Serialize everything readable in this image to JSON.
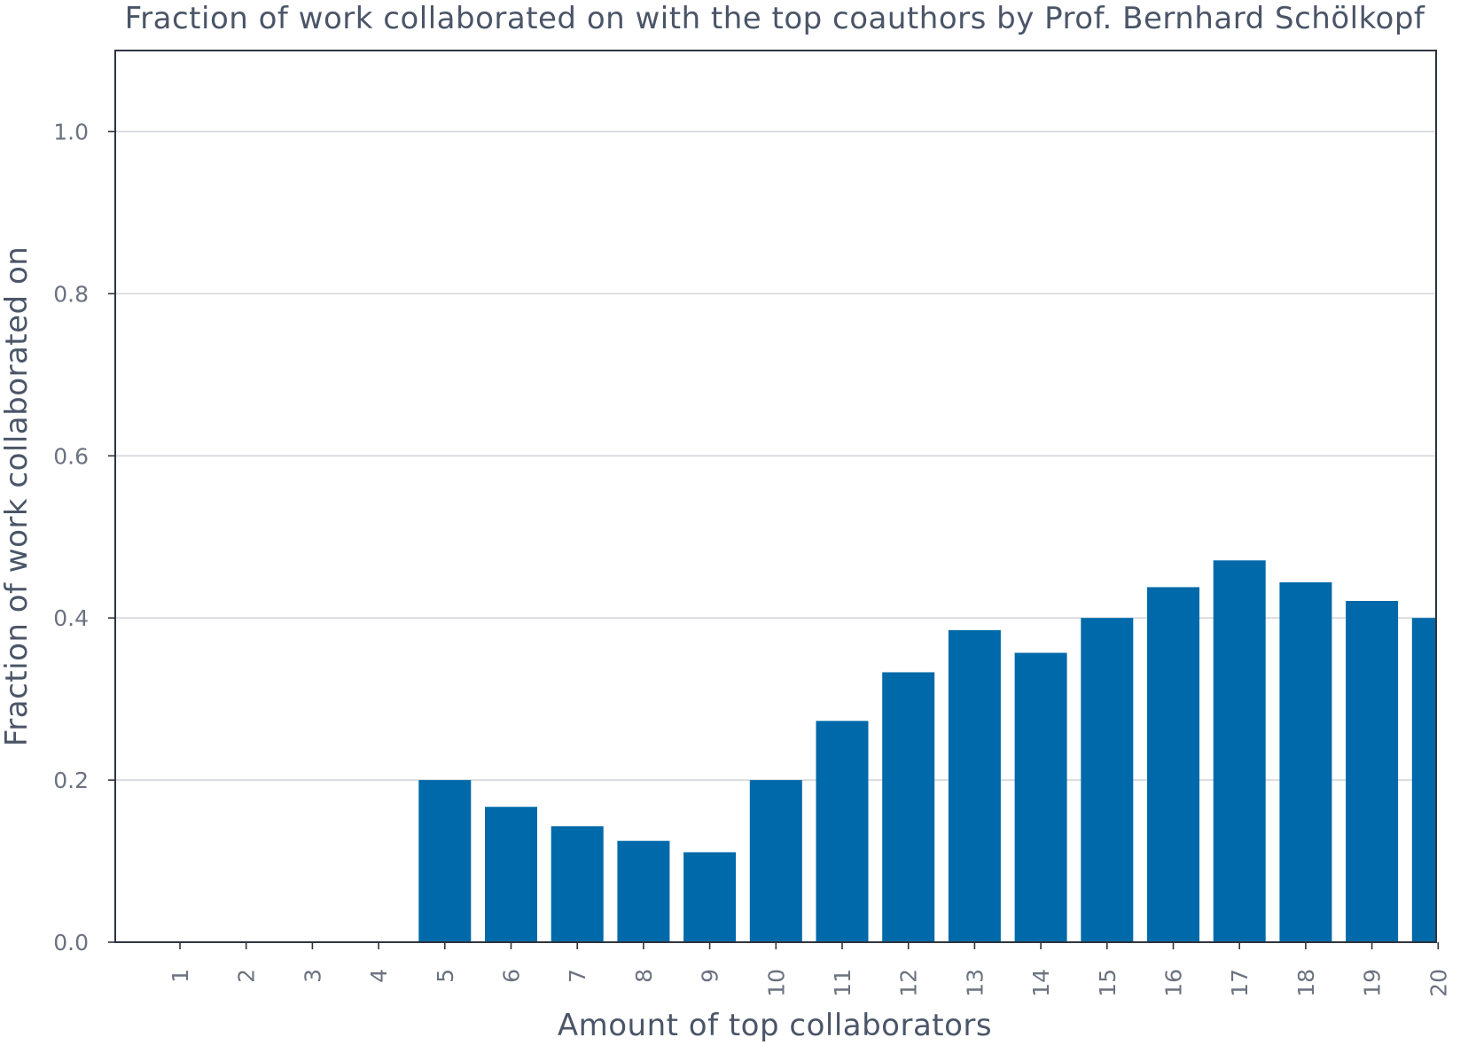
{
  "chart_data": {
    "type": "bar",
    "title": "Fraction of work collaborated on with the top coauthors by Prof. Bernhard Schölkopf",
    "xlabel": "Amount of top collaborators",
    "ylabel": "Fraction of work collaborated on",
    "categories": [
      "1",
      "2",
      "3",
      "4",
      "5",
      "6",
      "7",
      "8",
      "9",
      "10",
      "11",
      "12",
      "13",
      "14",
      "15",
      "16",
      "17",
      "18",
      "19",
      "20"
    ],
    "values": [
      0,
      0,
      0,
      0,
      0.2,
      0.167,
      0.143,
      0.125,
      0.111,
      0.2,
      0.273,
      0.333,
      0.385,
      0.357,
      0.4,
      0.438,
      0.471,
      0.444,
      0.421,
      0.4
    ],
    "ylim": [
      0,
      1.1
    ],
    "yticks": [
      "0.0",
      "0.2",
      "0.4",
      "0.6",
      "0.8",
      "1.0"
    ],
    "grid": true,
    "bar_color": "#0069aa"
  }
}
